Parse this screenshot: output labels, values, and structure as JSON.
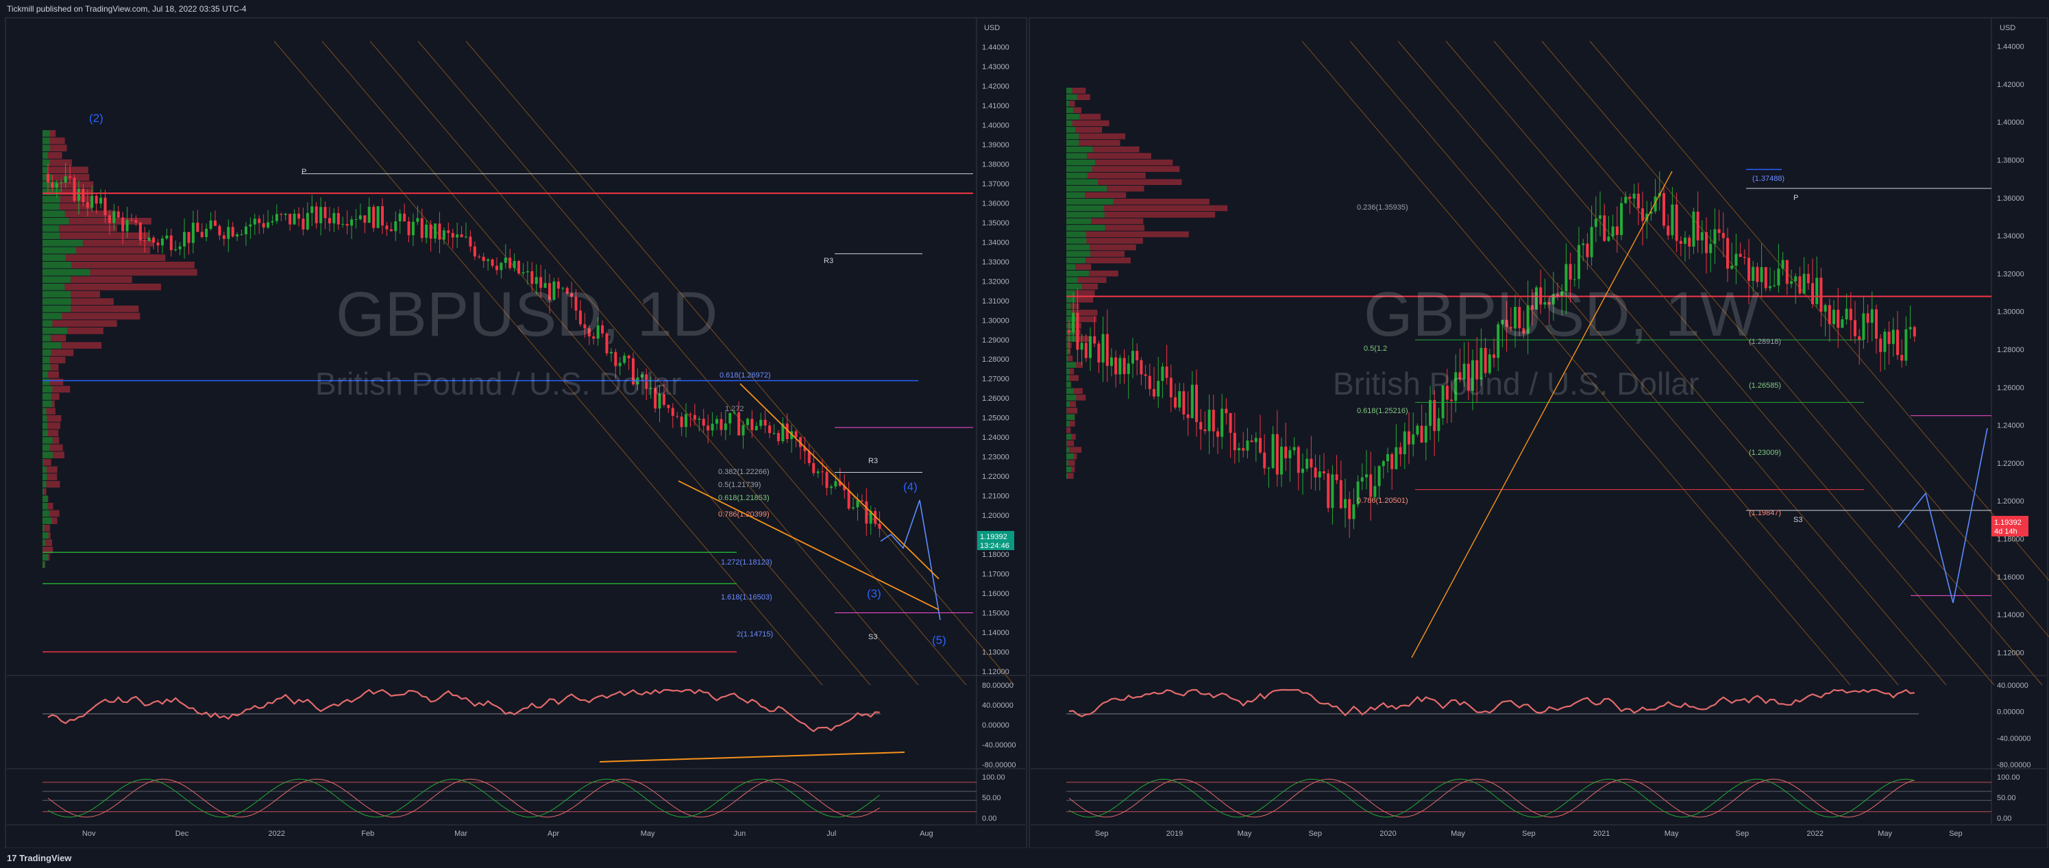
{
  "header": {
    "published": "Tickmill published on TradingView.com, Jul 18, 2022 03:35 UTC-4"
  },
  "footer": {
    "brand": "TradingView"
  },
  "colors": {
    "bg": "#131722",
    "up": "#22ab36",
    "down": "#f23645",
    "fib": "#2962ff",
    "orange": "#f7931a",
    "pink": "#ff4fd8"
  },
  "left": {
    "symbol": "GBPUSD, 1D",
    "description": "British Pound / U.S. Dollar",
    "currency": "USD",
    "price_tag": "1.19392",
    "timer_tag": "13:24:46",
    "price_ticks": [
      "1.44000",
      "1.43000",
      "1.42000",
      "1.41000",
      "1.40000",
      "1.39000",
      "1.38000",
      "1.37000",
      "1.36000",
      "1.35000",
      "1.34000",
      "1.33000",
      "1.32000",
      "1.31000",
      "1.30000",
      "1.29000",
      "1.28000",
      "1.27000",
      "1.26000",
      "1.25000",
      "1.24000",
      "1.23000",
      "1.22000",
      "1.21000",
      "1.20000",
      "1.19000",
      "1.18000",
      "1.17000",
      "1.16000",
      "1.15000",
      "1.14000",
      "1.13000",
      "1.12000"
    ],
    "ylim": [
      1.12,
      1.45
    ],
    "time_ticks": [
      "Nov",
      "Dec",
      "2022",
      "Feb",
      "Mar",
      "Apr",
      "May",
      "Jun",
      "Jul",
      "Aug"
    ],
    "rsi_ticks": [
      "80.00000",
      "40.00000",
      "0.00000",
      "-40.00000",
      "-80.00000"
    ],
    "stoch_ticks": [
      "100.00",
      "50.00",
      "0.00"
    ],
    "waves": [
      "(2)",
      "(3)",
      "(4)",
      "(5)"
    ],
    "fib_labels": [
      "0.618(1.26972)",
      "1.272",
      "0.786(1.20399)",
      "0.618(1.21853)",
      "0.382(1.22266)",
      "0.5(1.21739)",
      "1.272(1.18123)",
      "1.618(1.16503)",
      "2(1.14715)"
    ],
    "pivot_labels": [
      "P",
      "R3",
      "R3",
      "S3"
    ],
    "chart_data": {
      "type": "line",
      "title": "GBPUSD, 1D",
      "x": [
        "Nov",
        "Dec",
        "2022",
        "Feb",
        "Mar",
        "Apr",
        "May",
        "Jun",
        "Jul"
      ],
      "values": [
        1.375,
        1.34,
        1.35,
        1.355,
        1.34,
        1.31,
        1.25,
        1.245,
        1.194
      ],
      "ylim": [
        1.12,
        1.45
      ]
    }
  },
  "right": {
    "symbol": "GBPUSD, 1W",
    "description": "British Pound / U.S. Dollar",
    "currency": "USD",
    "price_tag": "1.19392",
    "timer_tag": "4d 14h",
    "price_ticks": [
      "1.44000",
      "1.42000",
      "1.40000",
      "1.38000",
      "1.36000",
      "1.34000",
      "1.32000",
      "1.30000",
      "1.28000",
      "1.26000",
      "1.24000",
      "1.22000",
      "1.20000",
      "1.18000",
      "1.16000",
      "1.14000",
      "1.12000"
    ],
    "ylim": [
      1.11,
      1.45
    ],
    "time_ticks": [
      "Sep",
      "2019",
      "May",
      "Sep",
      "2020",
      "May",
      "Sep",
      "2021",
      "May",
      "Sep",
      "2022",
      "May",
      "Sep"
    ],
    "rsi_ticks": [
      "40.00000",
      "0.00000",
      "-40.00000",
      "-80.00000"
    ],
    "stoch_ticks": [
      "100.00",
      "50.00",
      "0.00"
    ],
    "fib_labels": [
      "0.236(1.35935)",
      "0.618(1.25216)",
      "0.786(1.20501)",
      "0.5(1.2",
      "(1.37488)",
      "(1.28918)",
      "(1.26585)",
      "(1.23009)",
      "(1.19847)"
    ],
    "pivot_labels": [
      "P",
      "S3"
    ],
    "chart_data": {
      "type": "line",
      "title": "GBPUSD, 1W",
      "x": [
        "2019",
        "2020",
        "2021",
        "2022"
      ],
      "values": [
        1.29,
        1.2,
        1.36,
        1.28
      ],
      "ylim": [
        1.11,
        1.45
      ]
    }
  }
}
